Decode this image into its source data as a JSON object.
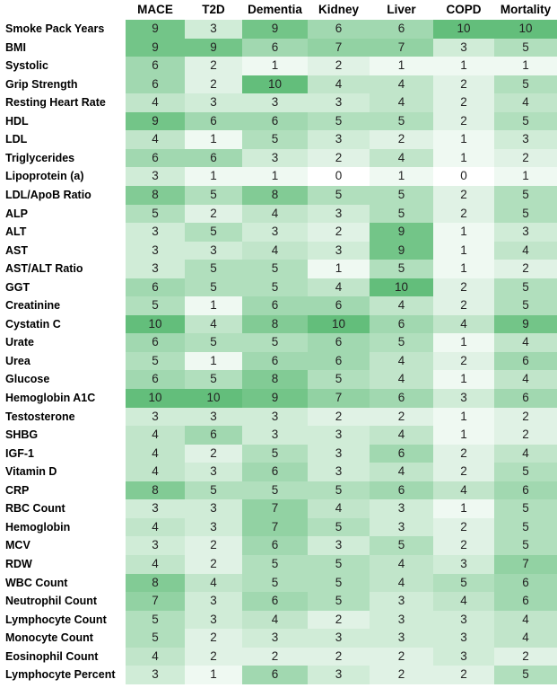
{
  "chart_data": {
    "type": "heatmap",
    "columns": [
      "MACE",
      "T2D",
      "Dementia",
      "Kidney",
      "Liver",
      "COPD",
      "Mortality"
    ],
    "rows": [
      {
        "label": "Smoke Pack Years",
        "values": [
          9,
          3,
          9,
          6,
          6,
          10,
          10
        ]
      },
      {
        "label": "BMI",
        "values": [
          9,
          9,
          6,
          7,
          7,
          3,
          5
        ]
      },
      {
        "label": "Systolic",
        "values": [
          6,
          2,
          1,
          2,
          1,
          1,
          1
        ]
      },
      {
        "label": "Grip Strength",
        "values": [
          6,
          2,
          10,
          4,
          4,
          2,
          5
        ]
      },
      {
        "label": "Resting Heart Rate",
        "values": [
          4,
          3,
          3,
          3,
          4,
          2,
          4
        ]
      },
      {
        "label": "HDL",
        "values": [
          9,
          6,
          6,
          5,
          5,
          2,
          5
        ]
      },
      {
        "label": "LDL",
        "values": [
          4,
          1,
          5,
          3,
          2,
          1,
          3
        ]
      },
      {
        "label": "Triglycerides",
        "values": [
          6,
          6,
          3,
          2,
          4,
          1,
          2
        ]
      },
      {
        "label": "Lipoprotein (a)",
        "values": [
          3,
          1,
          1,
          0,
          1,
          0,
          1
        ]
      },
      {
        "label": "LDL/ApoB Ratio",
        "values": [
          8,
          5,
          8,
          5,
          5,
          2,
          5
        ]
      },
      {
        "label": "ALP",
        "values": [
          5,
          2,
          4,
          3,
          5,
          2,
          5
        ]
      },
      {
        "label": "ALT",
        "values": [
          3,
          5,
          3,
          2,
          9,
          1,
          3
        ]
      },
      {
        "label": "AST",
        "values": [
          3,
          3,
          4,
          3,
          9,
          1,
          4
        ]
      },
      {
        "label": "AST/ALT Ratio",
        "values": [
          3,
          5,
          5,
          1,
          5,
          1,
          2
        ]
      },
      {
        "label": "GGT",
        "values": [
          6,
          5,
          5,
          4,
          10,
          2,
          5
        ]
      },
      {
        "label": "Creatinine",
        "values": [
          5,
          1,
          6,
          6,
          4,
          2,
          5
        ]
      },
      {
        "label": "Cystatin C",
        "values": [
          10,
          4,
          8,
          10,
          6,
          4,
          9
        ]
      },
      {
        "label": "Urate",
        "values": [
          6,
          5,
          5,
          6,
          5,
          1,
          4
        ]
      },
      {
        "label": "Urea",
        "values": [
          5,
          1,
          6,
          6,
          4,
          2,
          6
        ]
      },
      {
        "label": "Glucose",
        "values": [
          6,
          5,
          8,
          5,
          4,
          1,
          4
        ]
      },
      {
        "label": "Hemoglobin A1C",
        "values": [
          10,
          10,
          9,
          7,
          6,
          3,
          6
        ]
      },
      {
        "label": "Testosterone",
        "values": [
          3,
          3,
          3,
          2,
          2,
          1,
          2
        ]
      },
      {
        "label": "SHBG",
        "values": [
          4,
          6,
          3,
          3,
          4,
          1,
          2
        ]
      },
      {
        "label": "IGF-1",
        "values": [
          4,
          2,
          5,
          3,
          6,
          2,
          4
        ]
      },
      {
        "label": "Vitamin D",
        "values": [
          4,
          3,
          6,
          3,
          4,
          2,
          5
        ]
      },
      {
        "label": "CRP",
        "values": [
          8,
          5,
          5,
          5,
          6,
          4,
          6
        ]
      },
      {
        "label": "RBC Count",
        "values": [
          3,
          3,
          7,
          4,
          3,
          1,
          5
        ]
      },
      {
        "label": "Hemoglobin",
        "values": [
          4,
          3,
          7,
          5,
          3,
          2,
          5
        ]
      },
      {
        "label": "MCV",
        "values": [
          3,
          2,
          6,
          3,
          5,
          2,
          5
        ]
      },
      {
        "label": "RDW",
        "values": [
          4,
          2,
          5,
          5,
          4,
          3,
          7
        ]
      },
      {
        "label": "WBC Count",
        "values": [
          8,
          4,
          5,
          5,
          4,
          5,
          6
        ]
      },
      {
        "label": "Neutrophil Count",
        "values": [
          7,
          3,
          6,
          5,
          3,
          4,
          6
        ]
      },
      {
        "label": "Lymphocyte Count",
        "values": [
          5,
          3,
          4,
          2,
          3,
          3,
          4
        ]
      },
      {
        "label": "Monocyte Count",
        "values": [
          5,
          2,
          3,
          3,
          3,
          3,
          4
        ]
      },
      {
        "label": "Eosinophil Count",
        "values": [
          4,
          2,
          2,
          2,
          2,
          3,
          2
        ]
      },
      {
        "label": "Lymphocyte Percent",
        "values": [
          3,
          1,
          6,
          3,
          2,
          2,
          5
        ]
      }
    ],
    "value_range": [
      0,
      10
    ],
    "colors": {
      "low": "#ffffff",
      "high": "#63be7b"
    }
  }
}
